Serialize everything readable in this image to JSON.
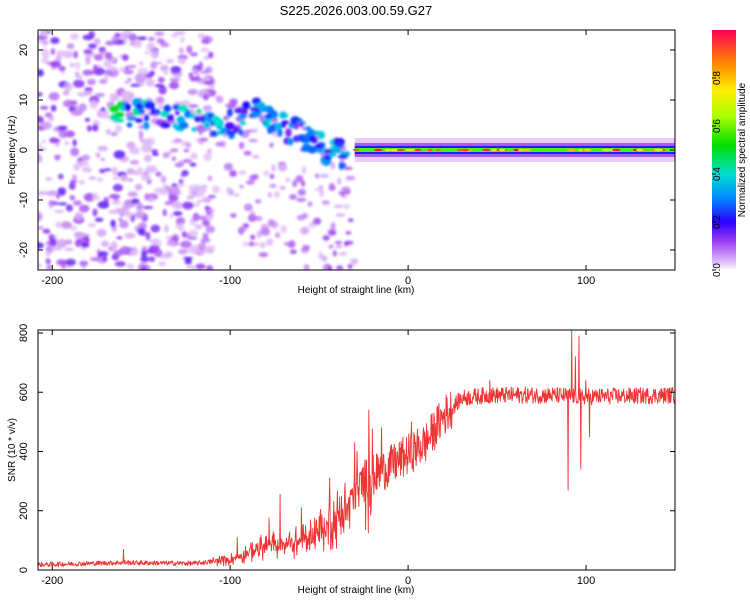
{
  "title": "S225.2026.003.00.59.G27",
  "chart_data": [
    {
      "type": "heatmap",
      "name": "spectrogram",
      "xlabel": "Height of straight line (km)",
      "ylabel": "Frequency (Hz)",
      "xlim": [
        -208,
        150
      ],
      "ylim": [
        -24,
        24
      ],
      "xticks": [
        -200,
        -100,
        0,
        100
      ],
      "yticks": [
        -20,
        -10,
        0,
        10,
        20
      ],
      "colorbar": {
        "label": "Normalized spectral amplitude",
        "range": [
          0,
          1
        ],
        "ticks": [
          0.0,
          0.2,
          0.4,
          0.6,
          0.8
        ],
        "tick_labels": [
          "0.0",
          "0.2",
          "0.4",
          "0.6",
          "0.8"
        ]
      },
      "features": {
        "noise_region_x": [
          -208,
          -110
        ],
        "descending_track": [
          {
            "x": -165,
            "f": 8,
            "amp": 0.4
          },
          {
            "x": -150,
            "f": 7,
            "amp": 0.35
          },
          {
            "x": -130,
            "f": 6.5,
            "amp": 0.3
          },
          {
            "x": -115,
            "f": 6,
            "amp": 0.35
          },
          {
            "x": -100,
            "f": 5,
            "amp": 0.3
          },
          {
            "x": -85,
            "f": 8,
            "amp": 0.3
          },
          {
            "x": -75,
            "f": 6,
            "amp": 0.35
          },
          {
            "x": -65,
            "f": 4,
            "amp": 0.25
          },
          {
            "x": -55,
            "f": 2,
            "amp": 0.3
          },
          {
            "x": -45,
            "f": 0,
            "amp": 0.3
          },
          {
            "x": -35,
            "f": -1,
            "amp": 0.4
          }
        ],
        "tone_frequency": 0,
        "tone_start_x": -30,
        "tone_end_x": 150
      }
    },
    {
      "type": "line",
      "name": "snr",
      "xlabel": "Height of straight line (km)",
      "ylabel": "SNR (10 * v/v)",
      "xlim": [
        -208,
        150
      ],
      "ylim": [
        0,
        810
      ],
      "xticks": [
        -200,
        -100,
        0,
        100
      ],
      "yticks": [
        0,
        200,
        400,
        600,
        800
      ],
      "color": "#ee3333",
      "trend": [
        {
          "x": -208,
          "y": 18
        },
        {
          "x": -160,
          "y": 25
        },
        {
          "x": -120,
          "y": 22
        },
        {
          "x": -100,
          "y": 35
        },
        {
          "x": -90,
          "y": 60
        },
        {
          "x": -80,
          "y": 80
        },
        {
          "x": -60,
          "y": 95
        },
        {
          "x": -45,
          "y": 150
        },
        {
          "x": -35,
          "y": 200
        },
        {
          "x": -25,
          "y": 300
        },
        {
          "x": -10,
          "y": 350
        },
        {
          "x": 0,
          "y": 390
        },
        {
          "x": 10,
          "y": 430
        },
        {
          "x": 20,
          "y": 520
        },
        {
          "x": 30,
          "y": 580
        },
        {
          "x": 45,
          "y": 590
        },
        {
          "x": 80,
          "y": 590
        },
        {
          "x": 100,
          "y": 585
        },
        {
          "x": 150,
          "y": 590
        }
      ],
      "spikes": [
        {
          "x": -160,
          "y": 70
        },
        {
          "x": -96,
          "y": 110
        },
        {
          "x": -78,
          "y": 175
        },
        {
          "x": -72,
          "y": 255
        },
        {
          "x": -60,
          "y": 210
        },
        {
          "x": -50,
          "y": 180
        },
        {
          "x": -44,
          "y": 310
        },
        {
          "x": -30,
          "y": 430
        },
        {
          "x": -22,
          "y": 540
        },
        {
          "x": -15,
          "y": 480
        },
        {
          "x": -8,
          "y": 410
        },
        {
          "x": 2,
          "y": 500
        },
        {
          "x": 46,
          "y": 640
        },
        {
          "x": 90,
          "y": 270
        },
        {
          "x": 92,
          "y": 810
        },
        {
          "x": 94,
          "y": 720
        },
        {
          "x": 96,
          "y": 790
        },
        {
          "x": 97,
          "y": 340
        },
        {
          "x": 100,
          "y": 640
        },
        {
          "x": 102,
          "y": 450
        }
      ]
    }
  ]
}
